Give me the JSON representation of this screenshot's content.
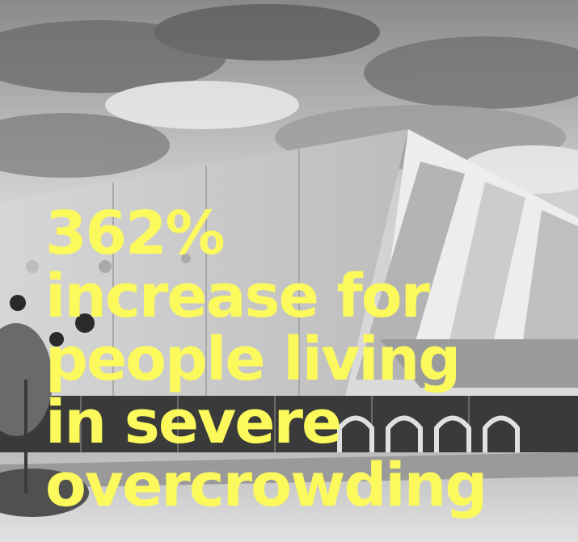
{
  "headline": {
    "lines": [
      "362%",
      "increase  for",
      "people living",
      "in severe",
      "overcrowding"
    ]
  },
  "colors": {
    "headline_text": "#fbf95c",
    "sky_light": "#e6e6e6",
    "sky_dark": "#555555",
    "facade": "#c9c9c9",
    "pavement": "#d0d0d0"
  }
}
